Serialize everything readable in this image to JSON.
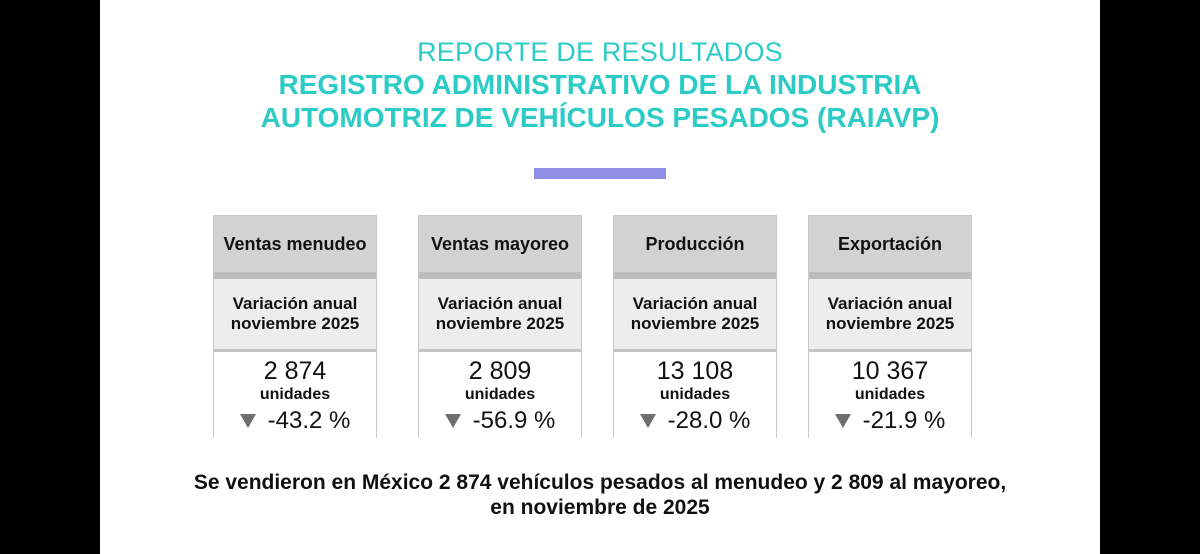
{
  "colors": {
    "accent": "#2ccbc6",
    "bar": "#8f8fe6",
    "card_header": "#d2d2d2",
    "card_sub": "#ededed",
    "down_arrow": "#6e6e6e"
  },
  "header": {
    "line1": "REPORTE DE RESULTADOS",
    "line2": "REGISTRO ADMINISTRATIVO DE LA INDUSTRIA",
    "line3": "AUTOMOTRIZ DE VEHÍCULOS PESADOS (RAIAVP)"
  },
  "cards": [
    {
      "title": "Ventas menudeo",
      "sub1": "Variación anual",
      "sub2": "noviembre 2025",
      "value": "2 874",
      "unit": "unidades",
      "change": "-43.2 %",
      "direction": "down"
    },
    {
      "title": "Ventas mayoreo",
      "sub1": "Variación anual",
      "sub2": "noviembre 2025",
      "value": "2 809",
      "unit": "unidades",
      "change": "-56.9 %",
      "direction": "down"
    },
    {
      "title": "Producción",
      "sub1": "Variación anual",
      "sub2": "noviembre 2025",
      "value": "13 108",
      "unit": "unidades",
      "change": "-28.0 %",
      "direction": "down"
    },
    {
      "title": "Exportación",
      "sub1": "Variación anual",
      "sub2": "noviembre 2025",
      "value": "10 367",
      "unit": "unidades",
      "change": "-21.9 %",
      "direction": "down"
    }
  ],
  "footer": {
    "line1": "Se vendieron en México 2 874 vehículos pesados al menudeo y 2 809 al mayoreo,",
    "line2": "en noviembre de 2025"
  }
}
